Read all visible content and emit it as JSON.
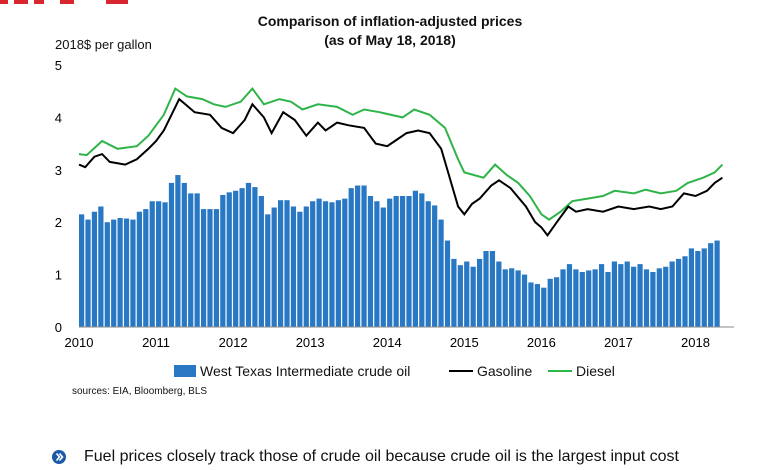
{
  "chart_data": {
    "type": "bar+line",
    "title": "Comparison of inflation-adjusted prices",
    "subtitle": "(as of May 18, 2018)",
    "ylabel": "2018$ per gallon",
    "ylim": [
      0,
      5
    ],
    "yticks": [
      "0",
      "1",
      "2",
      "3",
      "4",
      "5"
    ],
    "xlim": [
      2010,
      2018.5
    ],
    "xticks": [
      "2010",
      "2011",
      "2012",
      "2013",
      "2014",
      "2015",
      "2016",
      "2017",
      "2018"
    ],
    "colors": {
      "wti": "#2878c4",
      "gasoline": "#000000",
      "diesel": "#2fb44a"
    },
    "series": [
      {
        "name": "West Texas Intermediate crude oil",
        "kind": "bar",
        "start": 2010.0,
        "step": 0.0833,
        "values": [
          2.15,
          2.05,
          2.2,
          2.3,
          2.0,
          2.05,
          2.08,
          2.07,
          2.05,
          2.2,
          2.25,
          2.4,
          2.4,
          2.38,
          2.75,
          2.9,
          2.75,
          2.55,
          2.55,
          2.25,
          2.25,
          2.25,
          2.52,
          2.57,
          2.6,
          2.65,
          2.75,
          2.67,
          2.5,
          2.15,
          2.28,
          2.42,
          2.42,
          2.3,
          2.2,
          2.3,
          2.4,
          2.45,
          2.4,
          2.38,
          2.42,
          2.45,
          2.65,
          2.7,
          2.7,
          2.5,
          2.4,
          2.28,
          2.45,
          2.5,
          2.5,
          2.5,
          2.6,
          2.55,
          2.4,
          2.32,
          2.05,
          1.65,
          1.3,
          1.18,
          1.25,
          1.15,
          1.3,
          1.45,
          1.45,
          1.25,
          1.1,
          1.12,
          1.08,
          1.0,
          0.85,
          0.82,
          0.75,
          0.92,
          0.95,
          1.1,
          1.2,
          1.1,
          1.05,
          1.08,
          1.1,
          1.2,
          1.05,
          1.25,
          1.2,
          1.25,
          1.15,
          1.2,
          1.1,
          1.05,
          1.12,
          1.15,
          1.25,
          1.3,
          1.35,
          1.5,
          1.45,
          1.5,
          1.6,
          1.65
        ]
      },
      {
        "name": "Gasoline",
        "kind": "line",
        "points": [
          [
            2010.0,
            3.1
          ],
          [
            2010.08,
            3.05
          ],
          [
            2010.2,
            3.25
          ],
          [
            2010.3,
            3.3
          ],
          [
            2010.4,
            3.15
          ],
          [
            2010.6,
            3.1
          ],
          [
            2010.75,
            3.2
          ],
          [
            2010.9,
            3.4
          ],
          [
            2011.0,
            3.55
          ],
          [
            2011.1,
            3.75
          ],
          [
            2011.2,
            4.05
          ],
          [
            2011.3,
            4.35
          ],
          [
            2011.38,
            4.25
          ],
          [
            2011.5,
            4.1
          ],
          [
            2011.7,
            4.05
          ],
          [
            2011.85,
            3.8
          ],
          [
            2012.0,
            3.7
          ],
          [
            2012.15,
            3.95
          ],
          [
            2012.25,
            4.25
          ],
          [
            2012.4,
            4.0
          ],
          [
            2012.5,
            3.7
          ],
          [
            2012.65,
            4.1
          ],
          [
            2012.8,
            3.95
          ],
          [
            2012.95,
            3.65
          ],
          [
            2013.1,
            3.9
          ],
          [
            2013.2,
            3.75
          ],
          [
            2013.35,
            3.9
          ],
          [
            2013.5,
            3.85
          ],
          [
            2013.7,
            3.8
          ],
          [
            2013.85,
            3.5
          ],
          [
            2014.0,
            3.45
          ],
          [
            2014.1,
            3.55
          ],
          [
            2014.25,
            3.7
          ],
          [
            2014.4,
            3.75
          ],
          [
            2014.55,
            3.7
          ],
          [
            2014.7,
            3.4
          ],
          [
            2014.8,
            2.9
          ],
          [
            2014.92,
            2.3
          ],
          [
            2015.0,
            2.15
          ],
          [
            2015.1,
            2.35
          ],
          [
            2015.2,
            2.45
          ],
          [
            2015.35,
            2.7
          ],
          [
            2015.45,
            2.8
          ],
          [
            2015.6,
            2.65
          ],
          [
            2015.8,
            2.3
          ],
          [
            2015.92,
            2.0
          ],
          [
            2016.0,
            1.9
          ],
          [
            2016.08,
            1.75
          ],
          [
            2016.2,
            2.0
          ],
          [
            2016.35,
            2.3
          ],
          [
            2016.45,
            2.2
          ],
          [
            2016.6,
            2.25
          ],
          [
            2016.8,
            2.2
          ],
          [
            2017.0,
            2.3
          ],
          [
            2017.2,
            2.25
          ],
          [
            2017.4,
            2.3
          ],
          [
            2017.55,
            2.25
          ],
          [
            2017.7,
            2.3
          ],
          [
            2017.85,
            2.55
          ],
          [
            2018.0,
            2.5
          ],
          [
            2018.15,
            2.6
          ],
          [
            2018.25,
            2.75
          ],
          [
            2018.35,
            2.85
          ]
        ]
      },
      {
        "name": "Diesel",
        "kind": "line",
        "points": [
          [
            2010.0,
            3.3
          ],
          [
            2010.1,
            3.28
          ],
          [
            2010.3,
            3.55
          ],
          [
            2010.5,
            3.4
          ],
          [
            2010.75,
            3.45
          ],
          [
            2010.9,
            3.65
          ],
          [
            2011.1,
            4.05
          ],
          [
            2011.25,
            4.55
          ],
          [
            2011.4,
            4.4
          ],
          [
            2011.6,
            4.35
          ],
          [
            2011.75,
            4.25
          ],
          [
            2011.9,
            4.2
          ],
          [
            2012.1,
            4.3
          ],
          [
            2012.25,
            4.55
          ],
          [
            2012.4,
            4.25
          ],
          [
            2012.6,
            4.35
          ],
          [
            2012.75,
            4.3
          ],
          [
            2012.9,
            4.15
          ],
          [
            2013.1,
            4.25
          ],
          [
            2013.35,
            4.2
          ],
          [
            2013.55,
            4.05
          ],
          [
            2013.7,
            4.15
          ],
          [
            2013.9,
            4.1
          ],
          [
            2014.2,
            4.0
          ],
          [
            2014.35,
            4.15
          ],
          [
            2014.55,
            4.05
          ],
          [
            2014.75,
            3.8
          ],
          [
            2014.92,
            3.2
          ],
          [
            2015.0,
            2.95
          ],
          [
            2015.25,
            2.85
          ],
          [
            2015.4,
            3.1
          ],
          [
            2015.55,
            2.9
          ],
          [
            2015.7,
            2.75
          ],
          [
            2015.85,
            2.5
          ],
          [
            2016.0,
            2.15
          ],
          [
            2016.1,
            2.05
          ],
          [
            2016.25,
            2.2
          ],
          [
            2016.4,
            2.4
          ],
          [
            2016.6,
            2.45
          ],
          [
            2016.8,
            2.5
          ],
          [
            2016.95,
            2.6
          ],
          [
            2017.2,
            2.55
          ],
          [
            2017.35,
            2.62
          ],
          [
            2017.55,
            2.55
          ],
          [
            2017.75,
            2.6
          ],
          [
            2017.9,
            2.75
          ],
          [
            2018.1,
            2.85
          ],
          [
            2018.25,
            2.95
          ],
          [
            2018.35,
            3.1
          ]
        ]
      }
    ],
    "legend_position": "bottom",
    "grid": false
  },
  "header": {
    "title": "Comparison of inflation-adjusted prices",
    "subtitle": "(as of May 18, 2018)",
    "units_label": "2018$ per gallon"
  },
  "legend": {
    "items": [
      {
        "label": "West Texas Intermediate crude oil"
      },
      {
        "label": "Gasoline"
      },
      {
        "label": "Diesel"
      }
    ]
  },
  "footer": {
    "sources": "sources:  EIA, Bloomberg, BLS",
    "bullet_text": "Fuel prices closely track those of crude oil because crude oil is the largest input cost",
    "bullet_color": "#1b5aa6"
  }
}
